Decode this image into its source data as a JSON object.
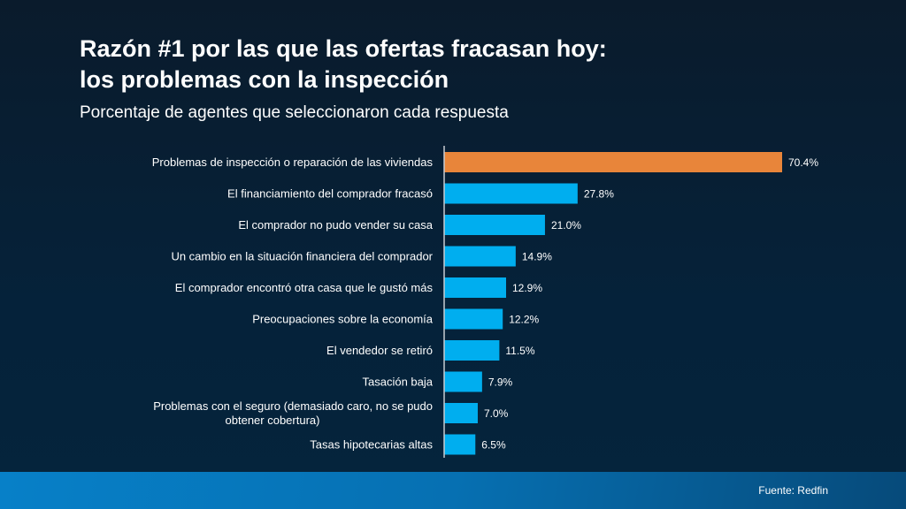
{
  "title_line1": "Razón #1 por las que las ofertas fracasan hoy:",
  "title_line2": "los problemas con la inspección",
  "subtitle": "Porcentaje de agentes que seleccionaron cada respuesta",
  "source": "Fuente: Redfin",
  "chart_data": {
    "type": "bar",
    "orientation": "horizontal",
    "categories": [
      [
        "Problemas de inspección o reparación de las viviendas"
      ],
      [
        "El financiamiento del comprador fracasó"
      ],
      [
        "El comprador no pudo vender su casa"
      ],
      [
        "Un cambio en la situación financiera del comprador"
      ],
      [
        "El comprador encontró otra casa que le gustó más"
      ],
      [
        "Preocupaciones sobre la economía"
      ],
      [
        "El vendedor se retiró"
      ],
      [
        "Tasación baja"
      ],
      [
        "Problemas con el seguro (demasiado caro, no se pudo",
        "obtener cobertura)"
      ],
      [
        "Tasas hipotecarias altas"
      ]
    ],
    "values": [
      70.4,
      27.8,
      21.0,
      14.9,
      12.9,
      12.2,
      11.5,
      7.9,
      7.0,
      6.5
    ],
    "labels": [
      "70.4%",
      "27.8%",
      "21.0%",
      "14.9%",
      "12.9%",
      "12.2%",
      "11.5%",
      "7.9%",
      "7.0%",
      "6.5%"
    ],
    "highlight_index": 0,
    "colors": {
      "highlight": "#E8853A",
      "default": "#00AEEF"
    },
    "xlim": [
      0,
      80
    ],
    "grid": false
  }
}
